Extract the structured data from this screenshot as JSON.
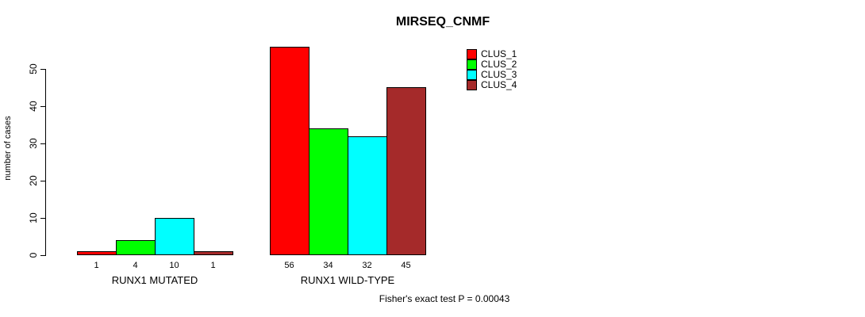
{
  "chart_data": {
    "type": "bar",
    "title": "MIRSEQ_CNMF",
    "xlabel": "",
    "ylabel": "number of cases",
    "ylim": [
      0,
      50
    ],
    "yticks": [
      0,
      10,
      20,
      30,
      40,
      50
    ],
    "grid": false,
    "legend_position": "top-right",
    "categories": [
      "RUNX1 MUTATED",
      "RUNX1 WILD-TYPE"
    ],
    "series": [
      {
        "name": "CLUS_1",
        "color": "#ff0000",
        "values": [
          1,
          56
        ]
      },
      {
        "name": "CLUS_2",
        "color": "#00ff00",
        "values": [
          4,
          34
        ]
      },
      {
        "name": "CLUS_3",
        "color": "#00ffff",
        "values": [
          10,
          32
        ]
      },
      {
        "name": "CLUS_4",
        "color": "#a52a2a",
        "values": [
          1,
          45
        ]
      }
    ],
    "bar_value_labels_shown": true,
    "annotation": "Fisher's exact test P = 0.00043"
  }
}
